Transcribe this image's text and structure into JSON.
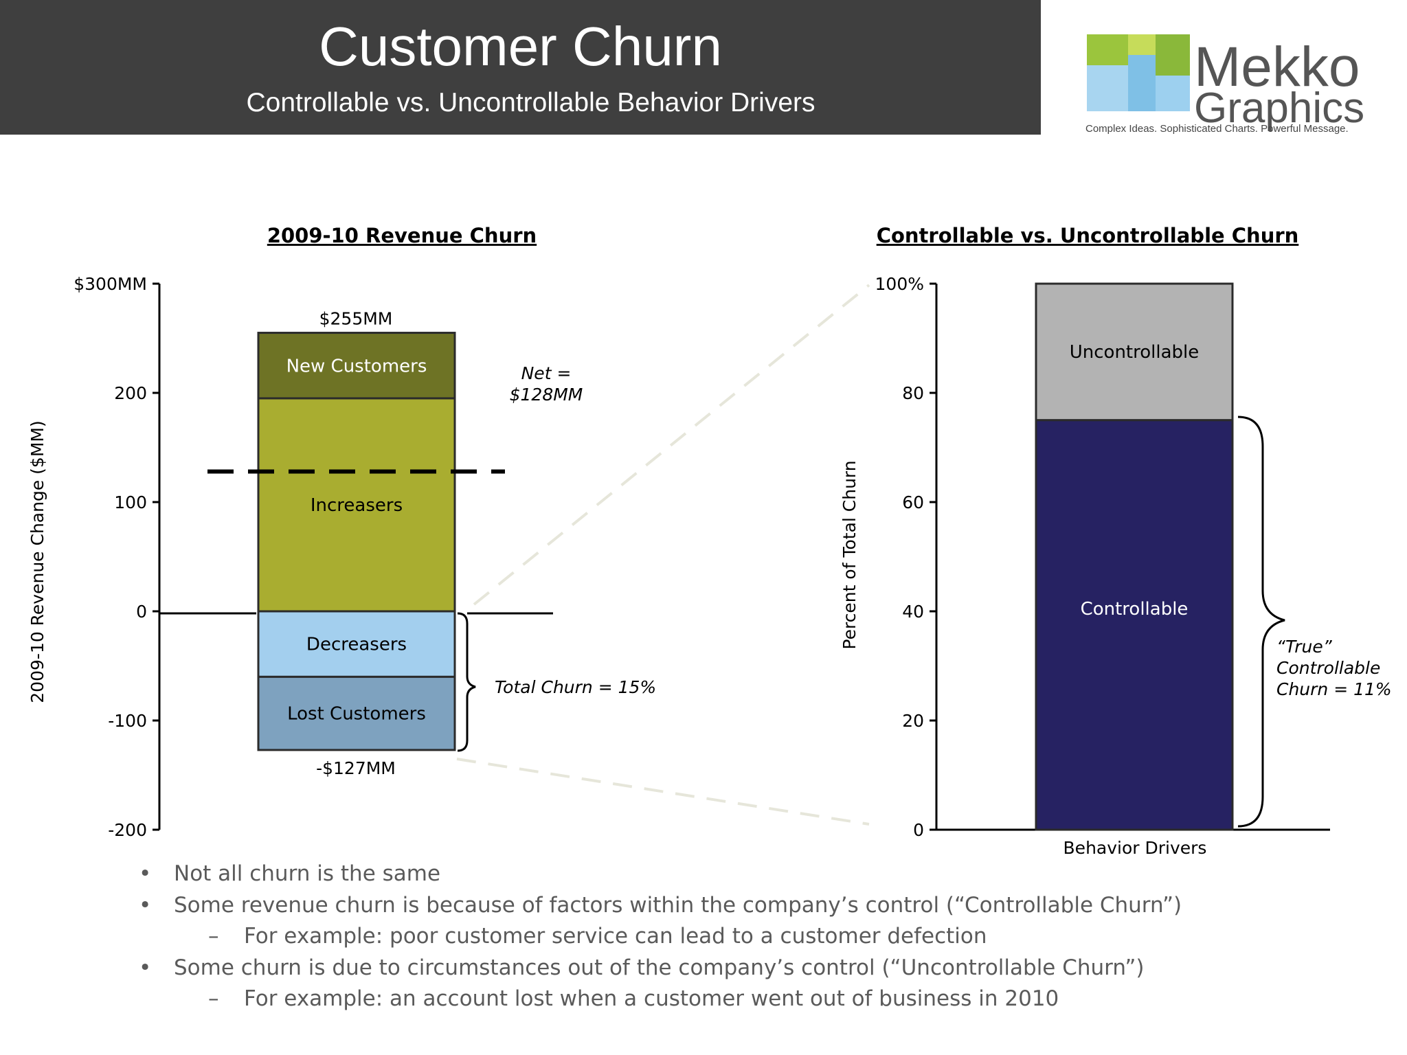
{
  "header": {
    "title": "Customer Churn",
    "subtitle": "Controllable vs. Uncontrollable Behavior Drivers"
  },
  "logo": {
    "line1": "Mekko",
    "line2": "Graphics",
    "tagline": "Complex Ideas. Sophisticated Charts. Powerful Message."
  },
  "chart_data": [
    {
      "type": "bar",
      "stacked": true,
      "title": "2009-10 Revenue Churn",
      "ylabel": "2009-10 Revenue Change ($MM)",
      "ylim": [
        -200,
        300
      ],
      "yticks": [
        300,
        200,
        100,
        0,
        -100,
        -200
      ],
      "ytick_labels": [
        "$300MM",
        "200",
        "100",
        "0",
        "-100",
        "-200"
      ],
      "segments": [
        {
          "name": "New Customers",
          "from": 195,
          "to": 255,
          "color": "#6e7325",
          "label_color": "#ffffff"
        },
        {
          "name": "Increasers",
          "from": 0,
          "to": 195,
          "color": "#a9ad30",
          "label_color": "#000000"
        },
        {
          "name": "Decreasers",
          "from": -60,
          "to": 0,
          "color": "#a3cfee",
          "label_color": "#000000"
        },
        {
          "name": "Lost Customers",
          "from": -127,
          "to": -60,
          "color": "#7ea2bf",
          "label_color": "#000000"
        }
      ],
      "top_label": "$255MM",
      "bottom_label": "-$127MM",
      "net_line_value": 128,
      "net_label": [
        "Net =",
        "$128MM"
      ],
      "total_churn_label": "Total Churn = 15%"
    },
    {
      "type": "bar",
      "stacked": true,
      "title": "Controllable vs. Uncontrollable Churn",
      "ylabel": "Percent of Total Churn",
      "xlabel": "Behavior Drivers",
      "ylim": [
        0,
        100
      ],
      "yticks": [
        100,
        80,
        60,
        40,
        20,
        0
      ],
      "ytick_labels": [
        "100%",
        "80",
        "60",
        "40",
        "20",
        "0"
      ],
      "segments": [
        {
          "name": "Uncontrollable",
          "from": 75,
          "to": 100,
          "color": "#b3b3b3",
          "label_color": "#000000"
        },
        {
          "name": "Controllable",
          "from": 0,
          "to": 75,
          "color": "#262262",
          "label_color": "#ffffff"
        }
      ],
      "true_churn_label": [
        "“True”",
        "Controllable",
        "Churn = 11%"
      ]
    }
  ],
  "bullets": [
    {
      "level": 1,
      "marker": "•",
      "text": "Not all churn is the same"
    },
    {
      "level": 1,
      "marker": "•",
      "text": "Some revenue churn is because of factors within the company’s control (“Controllable Churn”)"
    },
    {
      "level": 2,
      "marker": "–",
      "text": "For example: poor customer service can lead to a customer defection"
    },
    {
      "level": 1,
      "marker": "•",
      "text": "Some churn is due to circumstances out of the company’s control (“Uncontrollable Churn”)"
    },
    {
      "level": 2,
      "marker": "–",
      "text": "For example: an account lost when a customer went out of business in 2010"
    }
  ]
}
